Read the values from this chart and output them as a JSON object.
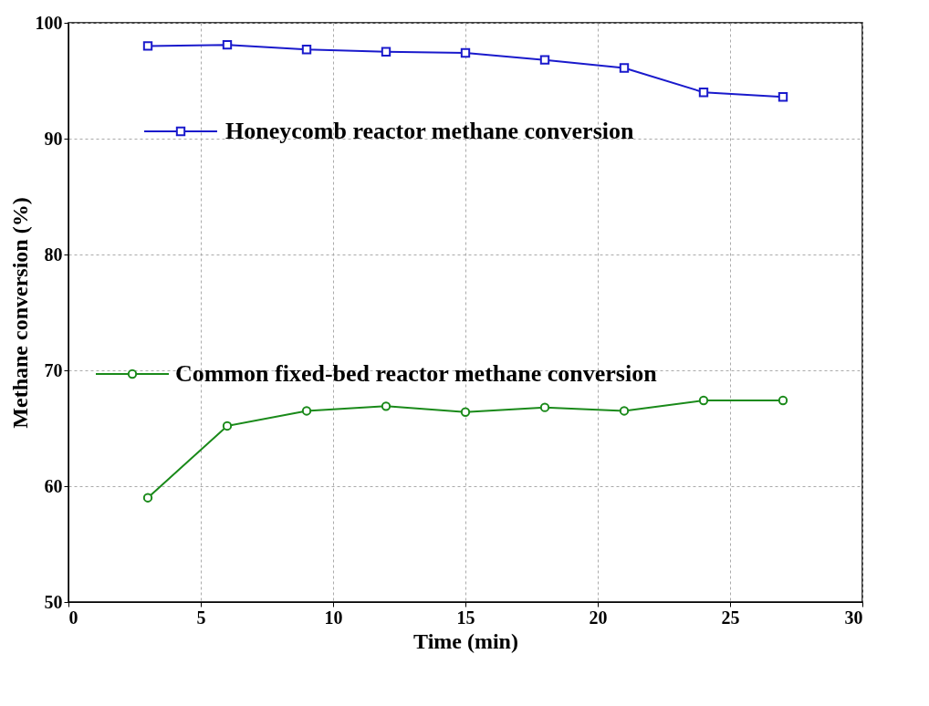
{
  "chart_data": {
    "type": "line",
    "xlabel": "Time (min)",
    "ylabel": "Methane conversion (%)",
    "x": [
      3,
      6,
      9,
      12,
      15,
      18,
      21,
      24,
      27
    ],
    "series": [
      {
        "name": "Honeycomb reactor methane conversion",
        "color": "#1a1acc",
        "marker": "square",
        "values": [
          98.0,
          98.1,
          97.7,
          97.5,
          97.4,
          96.8,
          96.1,
          94.0,
          93.6
        ]
      },
      {
        "name": "Common fixed-bed reactor methane conversion",
        "color": "#1a8a1a",
        "marker": "circle",
        "values": [
          59.0,
          65.2,
          66.5,
          66.9,
          66.4,
          66.8,
          66.5,
          67.4,
          67.4
        ]
      }
    ],
    "xlim": [
      0,
      30
    ],
    "xticks": [
      0,
      5,
      10,
      15,
      20,
      25,
      30
    ],
    "ylim": [
      50,
      100
    ],
    "yticks": [
      50,
      60,
      70,
      80,
      90,
      100
    ],
    "grid": true,
    "legend": "top left",
    "line_style": "solid"
  }
}
